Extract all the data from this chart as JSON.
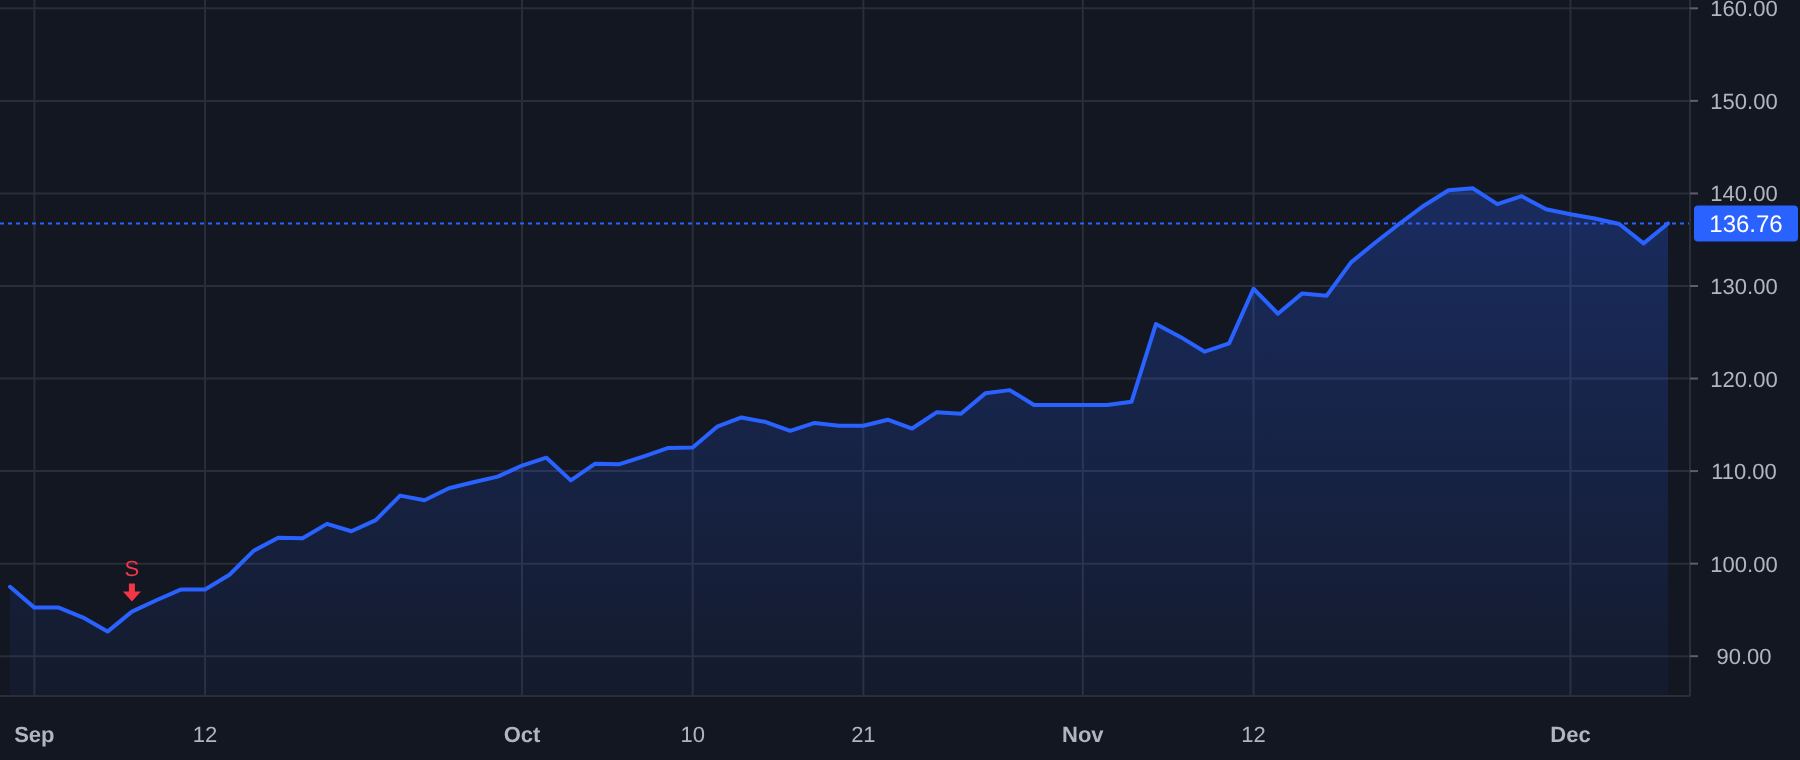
{
  "chart_data": {
    "type": "area",
    "categories": [
      null,
      "Sep",
      null,
      null,
      null,
      null,
      null,
      null,
      "12",
      null,
      null,
      null,
      null,
      null,
      null,
      null,
      null,
      null,
      null,
      null,
      null,
      "Oct",
      null,
      null,
      null,
      null,
      null,
      null,
      "10",
      null,
      null,
      null,
      null,
      null,
      null,
      "21",
      null,
      null,
      null,
      null,
      null,
      null,
      null,
      null,
      "Nov",
      null,
      null,
      null,
      null,
      null,
      null,
      "12",
      null,
      null,
      null,
      null,
      null,
      null,
      null,
      null,
      null,
      null,
      null,
      null,
      "Dec",
      null,
      null,
      null,
      null
    ],
    "series": [
      {
        "color": "#2962ff",
        "values": [
          97.5,
          95.25,
          95.25,
          94.17,
          92.66,
          94.82,
          96.05,
          97.2,
          97.2,
          98.8,
          101.4,
          102.8,
          102.75,
          104.3,
          103.5,
          104.7,
          107.35,
          106.85,
          108.15,
          108.8,
          109.4,
          110.6,
          111.45,
          109.0,
          110.8,
          110.75,
          111.6,
          112.5,
          112.55,
          114.8,
          115.8,
          115.3,
          114.35,
          115.2,
          114.9,
          114.9,
          115.55,
          114.6,
          116.35,
          116.2,
          118.4,
          118.75,
          117.15,
          117.15,
          117.15,
          117.15,
          117.5,
          125.9,
          124.5,
          122.9,
          123.8,
          129.7,
          127.0,
          129.2,
          128.95,
          132.55,
          134.7,
          136.75,
          138.7,
          140.35,
          140.55,
          138.85,
          139.7,
          138.3,
          137.75,
          137.3,
          136.7,
          134.6,
          136.76
        ]
      }
    ],
    "ylim": [
      85.7,
      160.9
    ],
    "yticks": [
      {
        "value": 90,
        "label": "90.00"
      },
      {
        "value": 100,
        "label": "100.00"
      },
      {
        "value": 110,
        "label": "110.00"
      },
      {
        "value": 120,
        "label": "120.00"
      },
      {
        "value": 130,
        "label": "130.00"
      },
      {
        "value": 140,
        "label": "140.00"
      },
      {
        "value": 150,
        "label": "150.00"
      },
      {
        "value": 160,
        "label": "160.00"
      }
    ],
    "grid": true,
    "ref_lines": [
      {
        "axis": "y",
        "value": 136.76,
        "label": "136.76",
        "color": "#2962ff",
        "line_style": "dotted"
      }
    ],
    "annotations": [
      {
        "text": "S",
        "y": 94.82
      }
    ]
  }
}
